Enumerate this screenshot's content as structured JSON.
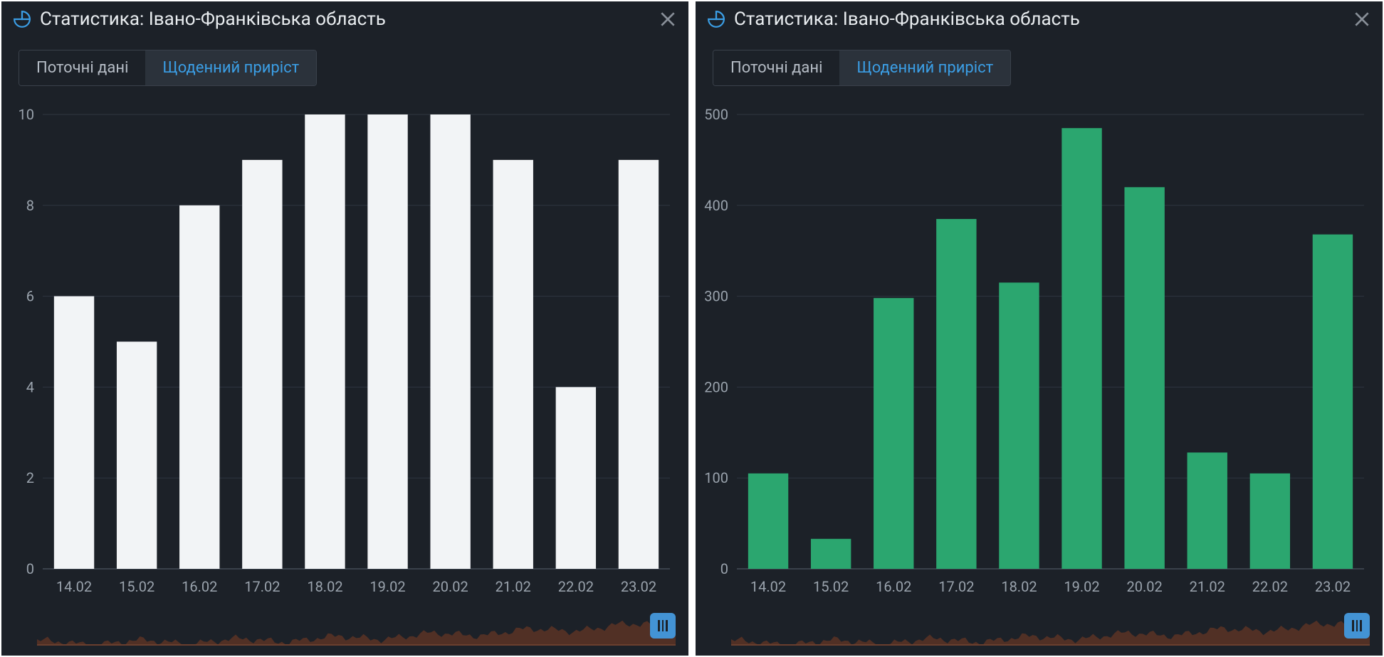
{
  "panels": [
    {
      "title": "Статистика: Івано-Франківська область",
      "tabs": {
        "inactive": "Поточні дані",
        "active": "Щоденний приріст"
      },
      "chart": {
        "type": "bar",
        "categories": [
          "14.02",
          "15.02",
          "16.02",
          "17.02",
          "18.02",
          "19.02",
          "20.02",
          "21.02",
          "22.02",
          "23.02"
        ],
        "values": [
          6,
          5,
          8,
          9,
          10,
          10,
          10,
          9,
          4,
          9
        ],
        "bar_color": "#f2f4f6",
        "ylim": [
          0,
          10
        ],
        "ytick_step": 2,
        "yticks": [
          0,
          2,
          4,
          6,
          8,
          10
        ],
        "background_color": "#1c2128",
        "grid_color": "#2f3640",
        "axis_label_color": "#9aa3ad",
        "axis_label_fontsize": 20,
        "bar_width_ratio": 0.64
      },
      "brush": {
        "fill_color": "#5a3224",
        "handle_color": "#4393d4"
      }
    },
    {
      "title": "Статистика: Івано-Франківська область",
      "tabs": {
        "inactive": "Поточні дані",
        "active": "Щоденний приріст"
      },
      "chart": {
        "type": "bar",
        "categories": [
          "14.02",
          "15.02",
          "16.02",
          "17.02",
          "18.02",
          "19.02",
          "20.02",
          "21.02",
          "22.02",
          "23.02"
        ],
        "values": [
          105,
          33,
          298,
          385,
          315,
          485,
          420,
          128,
          105,
          368
        ],
        "bar_color": "#2ba66f",
        "ylim": [
          0,
          500
        ],
        "ytick_step": 100,
        "yticks": [
          0,
          100,
          200,
          300,
          400,
          500
        ],
        "background_color": "#1c2128",
        "grid_color": "#2f3640",
        "axis_label_color": "#9aa3ad",
        "axis_label_fontsize": 20,
        "bar_width_ratio": 0.64
      },
      "brush": {
        "fill_color": "#5a3224",
        "handle_color": "#4393d4"
      }
    }
  ]
}
